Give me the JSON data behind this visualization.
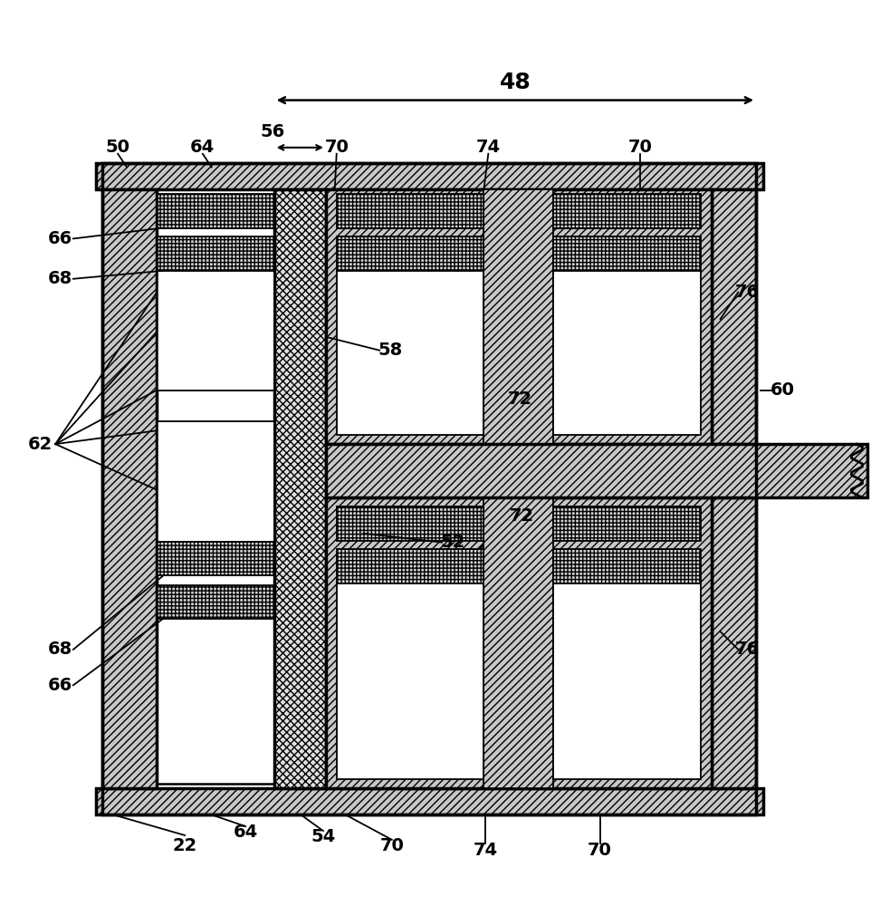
{
  "bg_color": "#ffffff",
  "fig_width": 9.83,
  "fig_height": 10.0,
  "lw_main": 2.5,
  "lw_med": 1.8,
  "lw_thin": 1.3
}
